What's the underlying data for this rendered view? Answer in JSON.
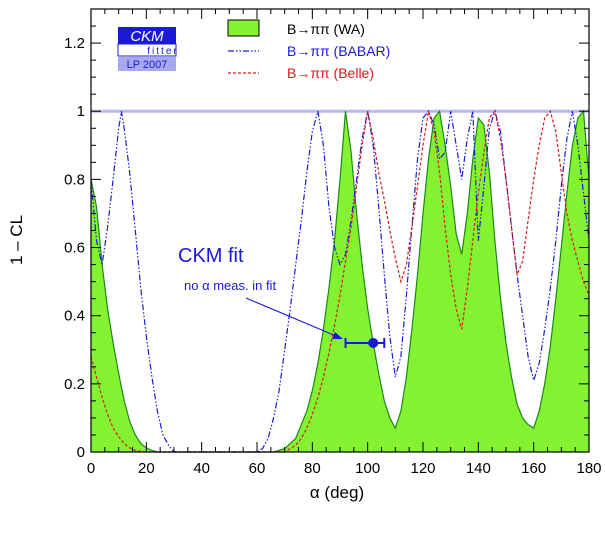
{
  "chart_data": {
    "type": "line",
    "xlabel": "α    (deg)",
    "ylabel": "1 – CL",
    "xlim": [
      0,
      180
    ],
    "ylim": [
      0,
      1.3
    ],
    "x_ticks": [
      "0",
      "20",
      "40",
      "60",
      "80",
      "100",
      "120",
      "140",
      "160",
      "180"
    ],
    "y_ticks": [
      "0",
      "0.2",
      "0.4",
      "0.6",
      "0.8",
      "1",
      "1.2"
    ],
    "reference_line": {
      "y": 1,
      "color": "#b8b8ee"
    },
    "grid": false,
    "legend_position": "top",
    "logo": {
      "line1": "CKM",
      "line2": "fitter",
      "line3": "LP 2007"
    },
    "series": [
      {
        "name": "B→ππ (WA)",
        "style": "filled",
        "fill": "#84f230",
        "stroke": "#1a8a1a",
        "x": [
          0,
          2,
          4,
          6,
          8,
          10,
          12,
          14,
          16,
          18,
          20,
          22,
          24,
          66,
          70,
          74,
          78,
          80,
          82,
          84,
          86,
          88,
          90,
          92,
          94,
          96,
          98,
          100,
          102,
          104,
          106,
          108,
          110,
          112,
          114,
          116,
          118,
          120,
          122,
          124,
          126,
          128,
          130,
          132,
          134,
          136,
          138,
          140,
          142,
          144,
          146,
          148,
          150,
          152,
          154,
          156,
          158,
          160,
          162,
          164,
          166,
          168,
          170,
          172,
          174,
          176,
          178,
          180
        ],
        "y": [
          0.8,
          0.72,
          0.55,
          0.42,
          0.32,
          0.23,
          0.15,
          0.09,
          0.05,
          0.025,
          0.012,
          0.005,
          0.0,
          0.0,
          0.01,
          0.04,
          0.12,
          0.18,
          0.26,
          0.36,
          0.48,
          0.62,
          0.8,
          1.0,
          0.88,
          0.7,
          0.55,
          0.42,
          0.32,
          0.23,
          0.15,
          0.1,
          0.07,
          0.12,
          0.22,
          0.36,
          0.52,
          0.7,
          0.86,
          0.98,
          1.0,
          0.9,
          0.78,
          0.64,
          0.58,
          0.7,
          0.86,
          0.98,
          0.96,
          0.82,
          0.62,
          0.45,
          0.32,
          0.22,
          0.14,
          0.1,
          0.08,
          0.07,
          0.12,
          0.2,
          0.31,
          0.45,
          0.6,
          0.76,
          0.9,
          0.98,
          1.0,
          0.8
        ]
      },
      {
        "name": "B→ππ (BABAR)",
        "style": "dashdot",
        "stroke": "#1a1ad6",
        "x": [
          0,
          2,
          4,
          6,
          8,
          10,
          11,
          12,
          14,
          16,
          18,
          20,
          22,
          24,
          26,
          28,
          30,
          60,
          62,
          64,
          66,
          68,
          70,
          72,
          74,
          76,
          78,
          80,
          82,
          84,
          86,
          88,
          90,
          92,
          94,
          96,
          98,
          100,
          102,
          104,
          106,
          108,
          110,
          112,
          114,
          116,
          118,
          120,
          122,
          124,
          126,
          128,
          130,
          132,
          134,
          136,
          138,
          140,
          142,
          144,
          146,
          148,
          150,
          152,
          154,
          156,
          158,
          160,
          162,
          164,
          166,
          168,
          170,
          172,
          174,
          176,
          178,
          180
        ],
        "y": [
          0.8,
          0.62,
          0.55,
          0.66,
          0.8,
          0.95,
          1.0,
          0.95,
          0.82,
          0.65,
          0.48,
          0.34,
          0.22,
          0.12,
          0.05,
          0.02,
          0.0,
          0.0,
          0.01,
          0.04,
          0.1,
          0.18,
          0.3,
          0.42,
          0.55,
          0.68,
          0.82,
          0.94,
          1.0,
          0.9,
          0.72,
          0.6,
          0.55,
          0.58,
          0.68,
          0.8,
          0.92,
          1.0,
          0.9,
          0.72,
          0.52,
          0.34,
          0.22,
          0.28,
          0.46,
          0.66,
          0.86,
          0.98,
          1.0,
          0.96,
          0.86,
          0.88,
          1.0,
          0.9,
          0.8,
          0.92,
          1.0,
          0.62,
          0.78,
          0.95,
          1.0,
          0.94,
          0.8,
          0.66,
          0.52,
          0.4,
          0.28,
          0.21,
          0.26,
          0.36,
          0.48,
          0.62,
          0.78,
          0.92,
          1.0,
          0.9,
          0.76,
          0.62
        ]
      },
      {
        "name": "B→ππ (Belle)",
        "style": "dashed",
        "stroke": "#d61a1a",
        "x": [
          0,
          2,
          4,
          6,
          8,
          10,
          12,
          14,
          16,
          18,
          20,
          22,
          24,
          26,
          70,
          72,
          74,
          76,
          78,
          80,
          82,
          84,
          86,
          88,
          90,
          92,
          94,
          96,
          98,
          100,
          102,
          104,
          106,
          108,
          110,
          112,
          114,
          116,
          118,
          120,
          122,
          124,
          126,
          128,
          130,
          132,
          134,
          136,
          138,
          140,
          142,
          144,
          146,
          148,
          150,
          152,
          154,
          156,
          158,
          160,
          162,
          164,
          166,
          168,
          170,
          172,
          174,
          176,
          178,
          180
        ],
        "y": [
          0.28,
          0.22,
          0.16,
          0.11,
          0.07,
          0.045,
          0.025,
          0.012,
          0.005,
          0.002,
          0.0,
          0.0,
          0.0,
          0.0,
          0.0,
          0.01,
          0.02,
          0.04,
          0.07,
          0.11,
          0.16,
          0.22,
          0.29,
          0.37,
          0.46,
          0.56,
          0.66,
          0.78,
          0.9,
          1.0,
          0.92,
          0.82,
          0.74,
          0.65,
          0.57,
          0.5,
          0.55,
          0.66,
          0.78,
          0.9,
          1.0,
          0.94,
          0.82,
          0.66,
          0.52,
          0.42,
          0.36,
          0.48,
          0.62,
          0.76,
          0.88,
          0.98,
          1.0,
          0.92,
          0.8,
          0.66,
          0.52,
          0.56,
          0.68,
          0.8,
          0.9,
          0.98,
          1.0,
          0.94,
          0.82,
          0.7,
          0.62,
          0.56,
          0.5,
          0.46
        ]
      }
    ],
    "annotation": {
      "title": "CKM fit",
      "subtitle": "no α meas. in fit",
      "point": {
        "x": 102,
        "y": 0.32
      },
      "error_x": [
        92,
        106
      ],
      "color": "#1a1ad6"
    }
  }
}
